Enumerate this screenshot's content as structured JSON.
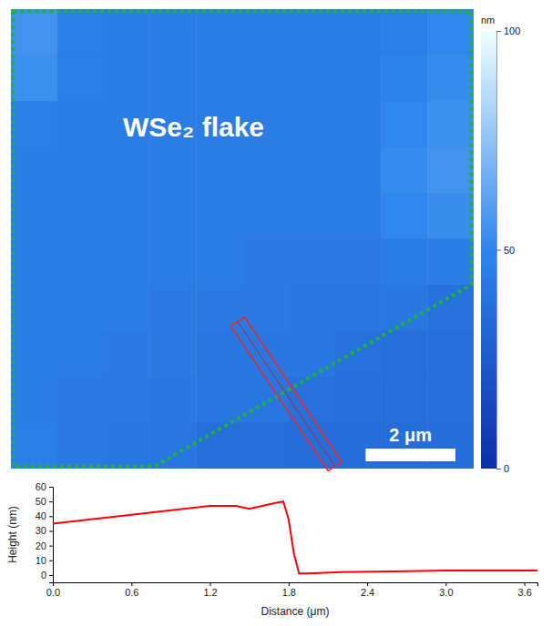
{
  "chart_data": [
    {
      "type": "heatmap",
      "annotation": "WSe₂ flake",
      "tick_labels": false,
      "xlim": [
        0,
        10.3
      ],
      "ylim": [
        0,
        9.8
      ],
      "scale_bar": {
        "value": 2,
        "label": "2 μm"
      },
      "colorbar": {
        "range": [
          0,
          100
        ],
        "ticks": [
          0,
          50,
          100
        ],
        "label": "nm"
      },
      "cells": [
        [
          55,
          46,
          45,
          45,
          45,
          45,
          45,
          45,
          46,
          50
        ],
        [
          54,
          46,
          45,
          45,
          45,
          45,
          45,
          45,
          48,
          52
        ],
        [
          46,
          45,
          45,
          45,
          44,
          44,
          45,
          45,
          50,
          54
        ],
        [
          45,
          45,
          45,
          44,
          44,
          44,
          44,
          45,
          52,
          55
        ],
        [
          45,
          45,
          44,
          44,
          44,
          44,
          44,
          44,
          50,
          53
        ],
        [
          45,
          44,
          44,
          44,
          44,
          43,
          43,
          43,
          44,
          44
        ],
        [
          45,
          44,
          44,
          43,
          43,
          43,
          42,
          42,
          42,
          38
        ],
        [
          45,
          44,
          43,
          43,
          42,
          42,
          42,
          38,
          37,
          37
        ],
        [
          45,
          43,
          43,
          42,
          42,
          41,
          38,
          37,
          37,
          37
        ],
        [
          46,
          43,
          42,
          41,
          37,
          37,
          36,
          36,
          36,
          36
        ]
      ]
    },
    {
      "type": "line",
      "x_label": "Distance (μm)",
      "y_label": "Height (nm)",
      "color": "#ff0000",
      "x": [
        0,
        0.2,
        0.4,
        0.6,
        0.8,
        1.0,
        1.2,
        1.4,
        1.5,
        1.6,
        1.7,
        1.76,
        1.8,
        1.84,
        1.88,
        1.95,
        2.2,
        2.6,
        3.0,
        3.4,
        3.7
      ],
      "values": [
        35,
        37,
        39,
        41,
        43,
        45,
        47,
        47,
        45,
        47,
        49,
        50,
        38,
        15,
        1,
        1,
        2,
        2.5,
        3,
        3,
        3
      ],
      "xlim": [
        0,
        3.7
      ],
      "xticks": [
        {
          "value": 0,
          "label": "0.0"
        },
        0.6,
        1.2,
        1.8,
        2.4,
        {
          "value": 3,
          "label": "3.0"
        },
        3.6
      ],
      "ylim": [
        -5,
        60
      ],
      "yticks": [
        0,
        10,
        20,
        30,
        40,
        50,
        60
      ]
    }
  ]
}
